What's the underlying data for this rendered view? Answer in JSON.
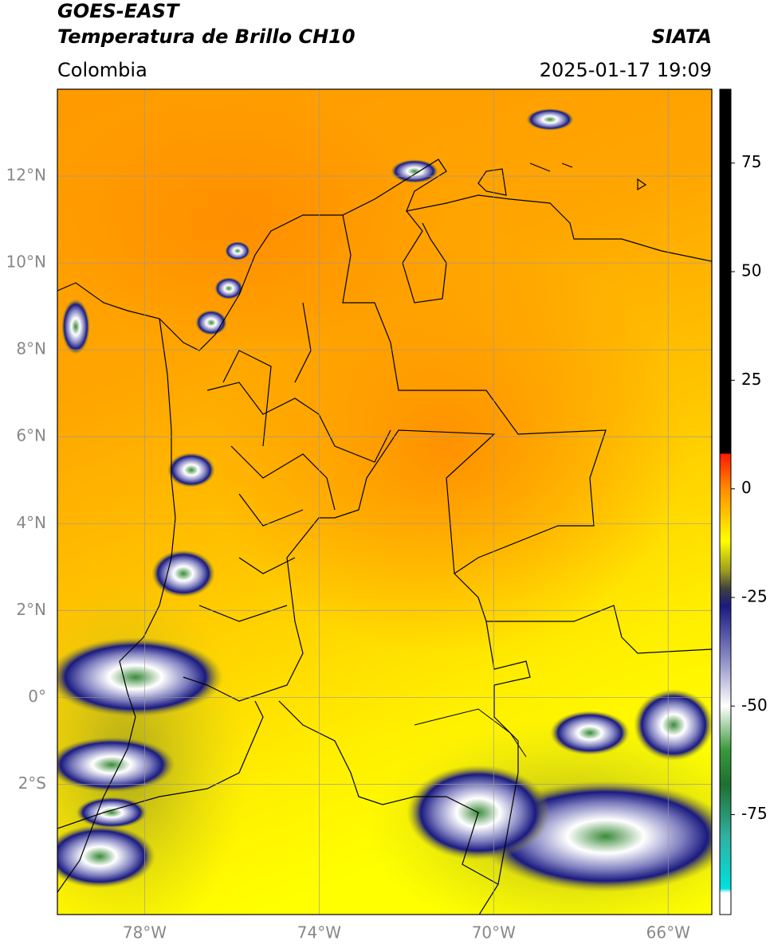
{
  "chart_data": {
    "type": "map",
    "title": "GOES-EAST",
    "subtitle": "Temperatura de Brillo CH10",
    "source": "SIATA",
    "region": "Colombia",
    "timestamp": "2025-01-17 19:09",
    "xlim": [
      -80,
      -65
    ],
    "ylim": [
      -5,
      14
    ],
    "xticks": [
      {
        "value": -78,
        "label": "78°W"
      },
      {
        "value": -74,
        "label": "74°W"
      },
      {
        "value": -70,
        "label": "70°W"
      },
      {
        "value": -66,
        "label": "66°W"
      }
    ],
    "yticks": [
      {
        "value": 12,
        "label": "12°N"
      },
      {
        "value": 10,
        "label": "10°N"
      },
      {
        "value": 8,
        "label": "8°N"
      },
      {
        "value": 6,
        "label": "6°N"
      },
      {
        "value": 4,
        "label": "4°N"
      },
      {
        "value": 2,
        "label": "2°N"
      },
      {
        "value": 0,
        "label": "0°"
      },
      {
        "value": -2,
        "label": "2°S"
      }
    ],
    "grid": true,
    "grid_color": "#999999",
    "colorbar": {
      "lim": [
        -98,
        92
      ],
      "ticks": [
        75,
        50,
        25,
        0,
        -25,
        -50,
        -75
      ],
      "stops": [
        {
          "value": 92,
          "color": "#000000"
        },
        {
          "value": 8.2,
          "color": "#000000"
        },
        {
          "value": 8,
          "color": "#ff1a00"
        },
        {
          "value": 0,
          "color": "#ff8c00"
        },
        {
          "value": -12,
          "color": "#ffff00"
        },
        {
          "value": -19,
          "color": "#9a9a20"
        },
        {
          "value": -23,
          "color": "#404040"
        },
        {
          "value": -27,
          "color": "#1a1a80"
        },
        {
          "value": -38,
          "color": "#8080c0"
        },
        {
          "value": -50,
          "color": "#ffffff"
        },
        {
          "value": -60,
          "color": "#3a9a3a"
        },
        {
          "value": -68,
          "color": "#1e7030"
        },
        {
          "value": -80,
          "color": "#30b0a0"
        },
        {
          "value": -92,
          "color": "#00e0e0"
        },
        {
          "value": -93,
          "color": "#ffffff"
        },
        {
          "value": -98,
          "color": "#ffffff"
        }
      ]
    }
  }
}
